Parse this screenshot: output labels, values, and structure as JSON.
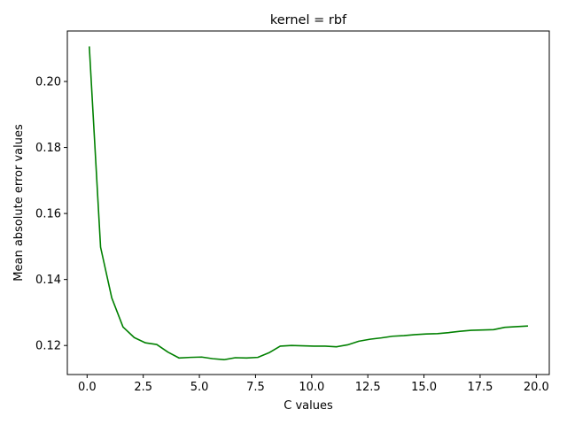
{
  "chart_data": {
    "type": "line",
    "title": "kernel = rbf",
    "xlabel": "C values",
    "ylabel": "Mean absolute error values",
    "xlim": [
      -0.88,
      20.58
    ],
    "ylim": [
      0.1112,
      0.2153
    ],
    "xticks": [
      0.0,
      2.5,
      5.0,
      7.5,
      10.0,
      12.5,
      15.0,
      17.5,
      20.0
    ],
    "xtick_labels": [
      "0.0",
      "2.5",
      "5.0",
      "7.5",
      "10.0",
      "12.5",
      "15.0",
      "17.5",
      "20.0"
    ],
    "yticks": [
      0.12,
      0.14,
      0.16,
      0.18,
      0.2
    ],
    "ytick_labels": [
      "0.12",
      "0.14",
      "0.16",
      "0.18",
      "0.20"
    ],
    "grid": false,
    "series": [
      {
        "color": "#008000",
        "x": [
          0.1,
          0.6,
          1.1,
          1.6,
          2.1,
          2.6,
          3.1,
          3.6,
          4.1,
          4.6,
          5.1,
          5.6,
          6.1,
          6.6,
          7.1,
          7.6,
          8.1,
          8.6,
          9.1,
          9.6,
          10.1,
          10.6,
          11.1,
          11.6,
          12.1,
          12.6,
          13.1,
          13.6,
          14.1,
          14.6,
          15.1,
          15.6,
          16.1,
          16.6,
          17.1,
          17.6,
          18.1,
          18.6,
          19.1,
          19.6
        ],
        "y": [
          0.2104,
          0.1498,
          0.1344,
          0.1256,
          0.1224,
          0.1208,
          0.1203,
          0.118,
          0.1162,
          0.1164,
          0.1165,
          0.116,
          0.1157,
          0.1163,
          0.1162,
          0.1164,
          0.1178,
          0.1198,
          0.12,
          0.1199,
          0.1198,
          0.1198,
          0.1196,
          0.1202,
          0.1213,
          0.1219,
          0.1223,
          0.1228,
          0.123,
          0.1233,
          0.1235,
          0.1236,
          0.1239,
          0.1243,
          0.1246,
          0.1247,
          0.1248,
          0.1255,
          0.1257,
          0.1259
        ]
      }
    ]
  }
}
